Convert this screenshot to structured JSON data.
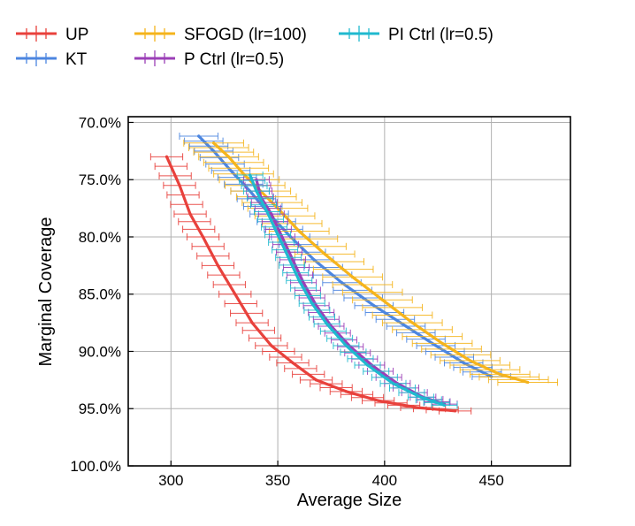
{
  "chart_data": {
    "type": "line",
    "title": "",
    "xlabel": "Average Size",
    "ylabel": "Marginal Coverage",
    "xlim": [
      280,
      487
    ],
    "ylim": [
      100,
      69.5
    ],
    "y_inverted": true,
    "grid": true,
    "legend_position": "top",
    "x_ticks": [
      300,
      350,
      400,
      450
    ],
    "x_tick_labels": [
      "300",
      "350",
      "400",
      "450"
    ],
    "y_ticks": [
      70,
      75,
      80,
      85,
      90,
      95,
      100
    ],
    "y_tick_labels": [
      "70.0%",
      "75.0%",
      "80.0%",
      "85.0%",
      "90.0%",
      "95.0%",
      "100.0%"
    ],
    "series": [
      {
        "name": "UP",
        "color": "#e8413c",
        "error": 7.5,
        "points": [
          [
            298,
            73.0
          ],
          [
            304,
            75.5
          ],
          [
            309,
            78.0
          ],
          [
            315,
            80.0
          ],
          [
            322,
            82.5
          ],
          [
            330,
            85.0
          ],
          [
            338,
            87.5
          ],
          [
            347,
            89.5
          ],
          [
            357,
            91.0
          ],
          [
            368,
            92.5
          ],
          [
            382,
            93.5
          ],
          [
            397,
            94.3
          ],
          [
            415,
            94.9
          ],
          [
            433,
            95.2
          ]
        ]
      },
      {
        "name": "KT",
        "color": "#4c86e0",
        "error": 9,
        "points": [
          [
            313,
            71.2
          ],
          [
            320,
            72.5
          ],
          [
            328,
            74.2
          ],
          [
            337,
            76.0
          ],
          [
            346,
            78.0
          ],
          [
            356,
            80.0
          ],
          [
            367,
            82.0
          ],
          [
            380,
            84.0
          ],
          [
            395,
            86.0
          ],
          [
            410,
            87.8
          ],
          [
            424,
            89.5
          ],
          [
            437,
            91.0
          ],
          [
            450,
            92.2
          ]
        ]
      },
      {
        "name": "SFOGD (lr=100)",
        "color": "#f5b41c",
        "error": 14,
        "points": [
          [
            320,
            71.8
          ],
          [
            327,
            73.0
          ],
          [
            334,
            74.5
          ],
          [
            342,
            76.0
          ],
          [
            350,
            77.5
          ],
          [
            360,
            79.5
          ],
          [
            372,
            81.5
          ],
          [
            385,
            83.5
          ],
          [
            399,
            85.5
          ],
          [
            413,
            87.5
          ],
          [
            427,
            89.3
          ],
          [
            440,
            90.8
          ],
          [
            454,
            92.0
          ],
          [
            467,
            92.7
          ]
        ]
      },
      {
        "name": "P Ctrl (lr=0.5)",
        "color": "#9b3fb7",
        "error": 6,
        "points": [
          [
            340,
            75.0
          ],
          [
            342,
            76.5
          ],
          [
            347,
            78.0
          ],
          [
            352,
            80.0
          ],
          [
            357,
            82.0
          ],
          [
            362,
            84.0
          ],
          [
            368,
            86.0
          ],
          [
            375,
            87.8
          ],
          [
            384,
            89.6
          ],
          [
            394,
            91.2
          ],
          [
            406,
            92.8
          ],
          [
            418,
            94.0
          ],
          [
            428,
            94.6
          ]
        ]
      },
      {
        "name": "PI Ctrl (lr=0.5)",
        "color": "#1fb9cf",
        "error": 6,
        "points": [
          [
            337,
            74.6
          ],
          [
            340,
            76.0
          ],
          [
            345,
            77.8
          ],
          [
            350,
            79.8
          ],
          [
            355,
            81.8
          ],
          [
            360,
            83.8
          ],
          [
            366,
            85.8
          ],
          [
            373,
            87.6
          ],
          [
            382,
            89.5
          ],
          [
            392,
            91.2
          ],
          [
            404,
            92.8
          ],
          [
            417,
            94.0
          ],
          [
            428,
            94.7
          ]
        ]
      }
    ]
  }
}
